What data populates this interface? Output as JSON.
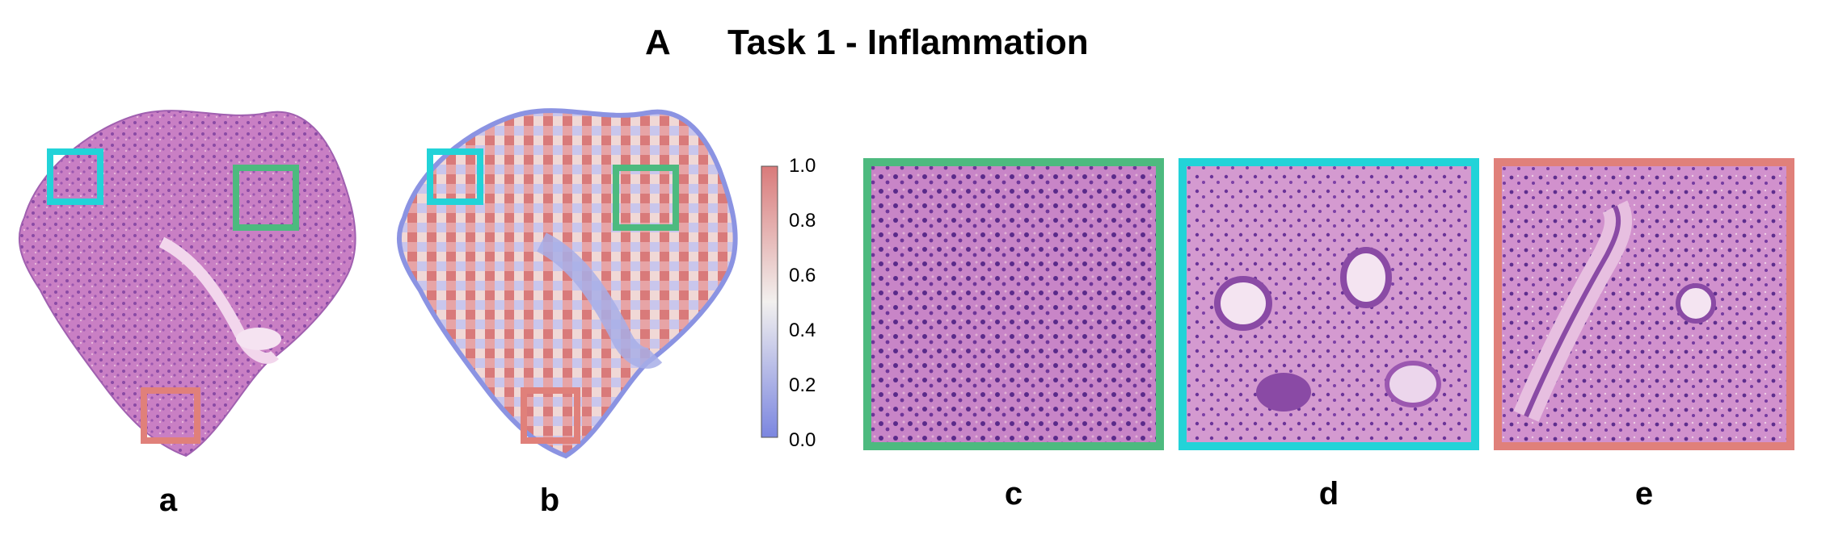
{
  "header": {
    "panel_letter": "A",
    "title": "Task 1 - Inflammation"
  },
  "panels": [
    {
      "id": "a",
      "label": "a"
    },
    {
      "id": "b",
      "label": "b"
    },
    {
      "id": "c",
      "label": "c",
      "border_color": "#4dba7f"
    },
    {
      "id": "d",
      "label": "d",
      "border_color": "#22d3d8"
    },
    {
      "id": "e",
      "label": "e",
      "border_color": "#e0807a"
    }
  ],
  "roi_colors": {
    "cyan": "#22d3d8",
    "green": "#4dba7f",
    "salmon": "#e0807a"
  },
  "colorbar": {
    "ticks": [
      "1.0",
      "0.8",
      "0.6",
      "0.4",
      "0.2",
      "0.0"
    ],
    "colors": {
      "low": "#7b86e0",
      "mid": "#f2f0ee",
      "high": "#d97a7a"
    }
  }
}
